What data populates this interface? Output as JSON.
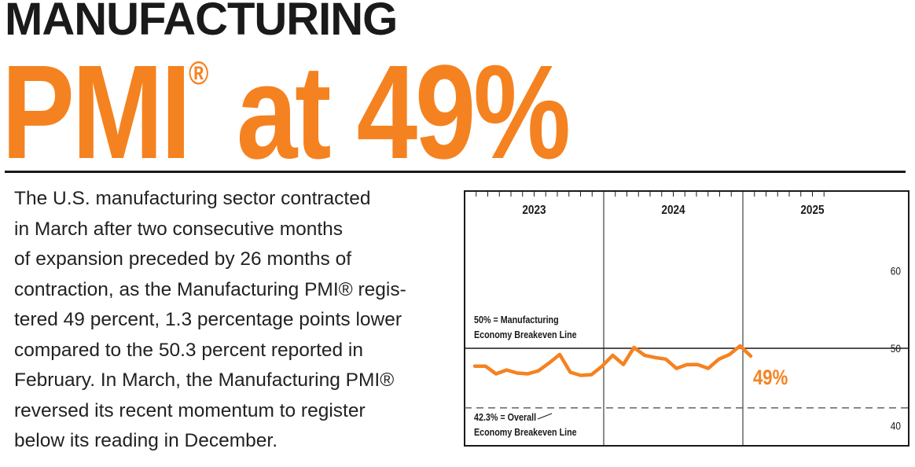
{
  "headline": {
    "line1": "MANUFACTURING",
    "line2_main": "PMI",
    "line2_reg": "®",
    "line2_rest": " at 49%"
  },
  "body_lines": [
    "The U.S. manufacturing sector contracted",
    "in March after two consecutive months",
    "of expansion preceded by 26 months of",
    "contraction, as the Manufacturing PMI® regis-",
    "tered 49 percent, 1.3 percentage points lower",
    "compared to the 50.3 percent reported in",
    "February. In March, the Manufacturing PMI®",
    "reversed its recent momentum to register",
    "below its reading in December."
  ],
  "colors": {
    "accent": "#f58220",
    "text": "#222222"
  },
  "chart_data": {
    "type": "line",
    "years": [
      "2023",
      "2024",
      "2025"
    ],
    "ylim": [
      40,
      61
    ],
    "y_ticks": [
      40,
      50,
      60
    ],
    "series": [
      {
        "name": "",
        "values": [
          47.7,
          47.7,
          46.7,
          47.2,
          46.8,
          46.7,
          47.1,
          48.1,
          49.2,
          46.9,
          46.5,
          46.6,
          47.7,
          49.1,
          47.9,
          50.1,
          49.1,
          48.8,
          48.6,
          47.4,
          47.9,
          47.9,
          47.4,
          48.6,
          49.2,
          50.3,
          49.0
        ]
      }
    ],
    "reference_lines": [
      {
        "value": 50,
        "style": "solid",
        "label_line1": "50% = Manufacturing",
        "label_line2": "Economy Breakeven Line"
      },
      {
        "value": 42.3,
        "style": "dashed",
        "label_line1": "42.3% = Overall",
        "label_line2": "Economy Breakeven Line"
      }
    ],
    "end_label": "49%"
  }
}
